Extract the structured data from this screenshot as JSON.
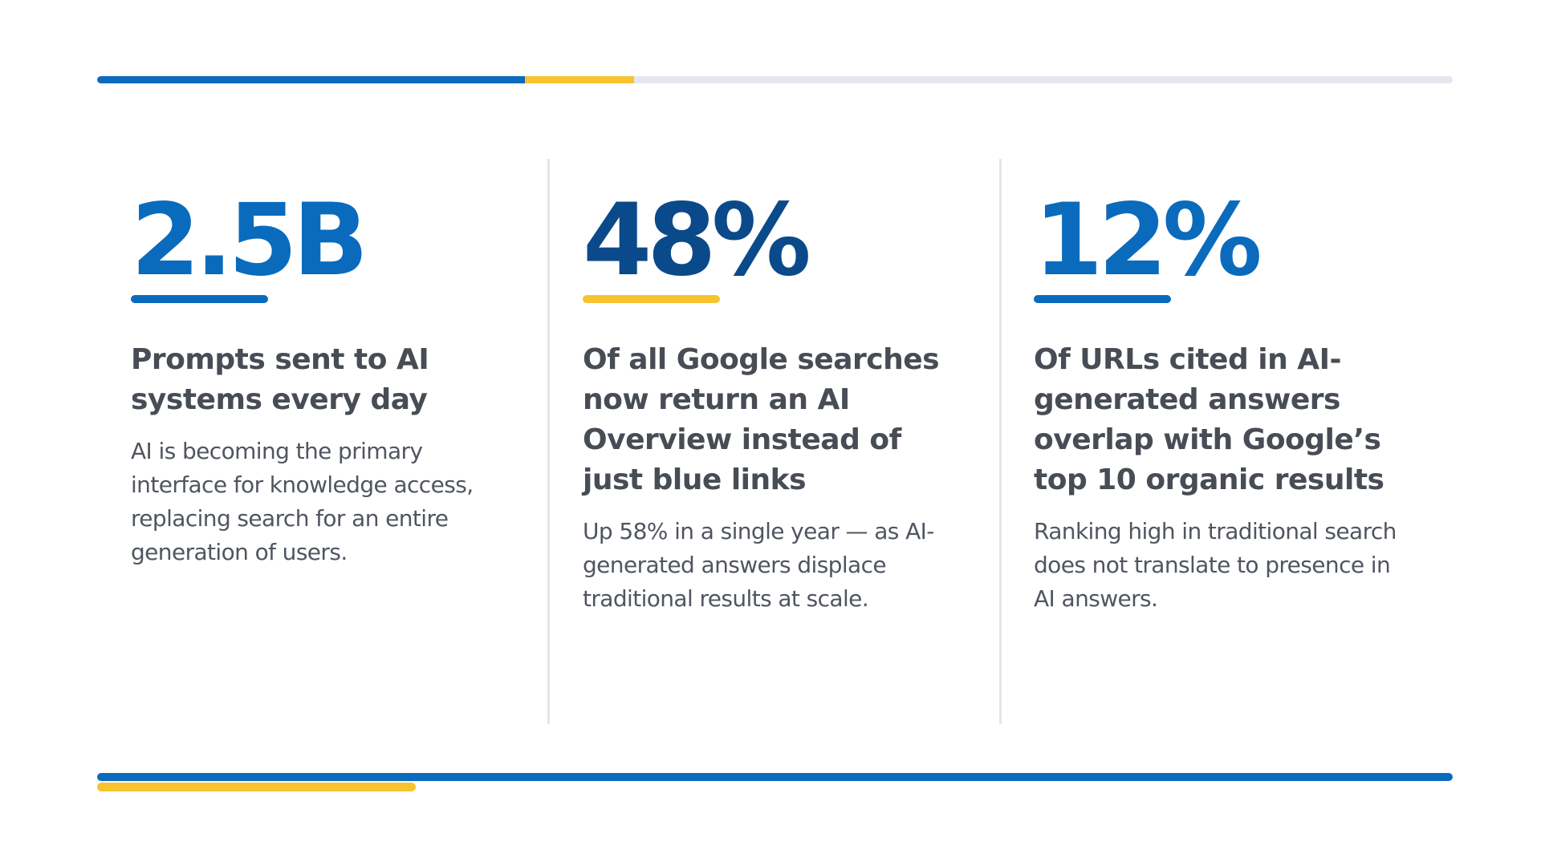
{
  "decor": {
    "top_bar": "progress-bar",
    "bottom_bar": "accent-bar"
  },
  "colors": {
    "primary_blue": "#0a6bbd",
    "dark_blue": "#0b4a8a",
    "accent_yellow": "#f7c32e",
    "track_gray": "#e4e8ee",
    "text_gray": "#474c55"
  },
  "stats": [
    {
      "number": "2.5B",
      "heading": "Prompts sent to AI systems every day",
      "description": "AI is becoming the primary interface for knowledge access, replacing search for an entire generation of users."
    },
    {
      "number": "48%",
      "heading": "Of all Google searches now return an AI Overview instead of just blue links",
      "description": "Up 58% in a single year — as AI-generated answers displace traditional results at scale."
    },
    {
      "number": "12%",
      "heading": "Of URLs cited in AI-generated answers overlap with Google’s top 10 organic results",
      "description": "Ranking high in traditional search does not translate to presence in AI answers."
    }
  ]
}
